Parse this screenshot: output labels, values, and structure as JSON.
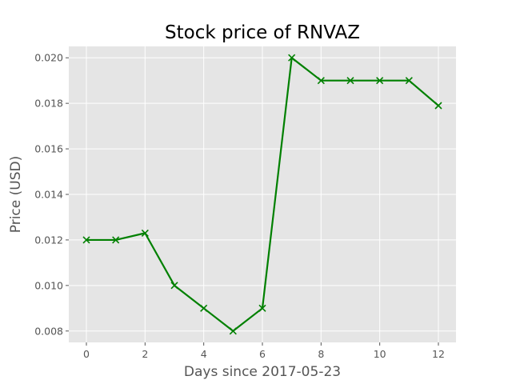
{
  "chart_data": {
    "type": "line",
    "title": "Stock price of RNVAZ",
    "xlabel": "Days since 2017-05-23",
    "ylabel": "Price (USD)",
    "x": [
      0,
      1,
      2,
      3,
      4,
      5,
      6,
      7,
      8,
      9,
      10,
      11,
      12
    ],
    "series": [
      {
        "values": [
          0.012,
          0.012,
          0.0123,
          0.01,
          0.009,
          0.008,
          0.009,
          0.02,
          0.019,
          0.019,
          0.019,
          0.019,
          0.0179
        ],
        "color": "#008000",
        "marker": "x"
      }
    ],
    "xticks": [
      "0",
      "2",
      "4",
      "6",
      "8",
      "10",
      "12"
    ],
    "yticks": [
      "0.008",
      "0.010",
      "0.012",
      "0.014",
      "0.016",
      "0.018",
      "0.020"
    ],
    "xlim": [
      -0.6,
      12.6
    ],
    "ylim": [
      0.0075,
      0.0205
    ],
    "grid": true,
    "legend": "none",
    "colors": {
      "plot_background": "#e5e5e5",
      "grid": "#ffffff",
      "text": "#555555"
    }
  }
}
